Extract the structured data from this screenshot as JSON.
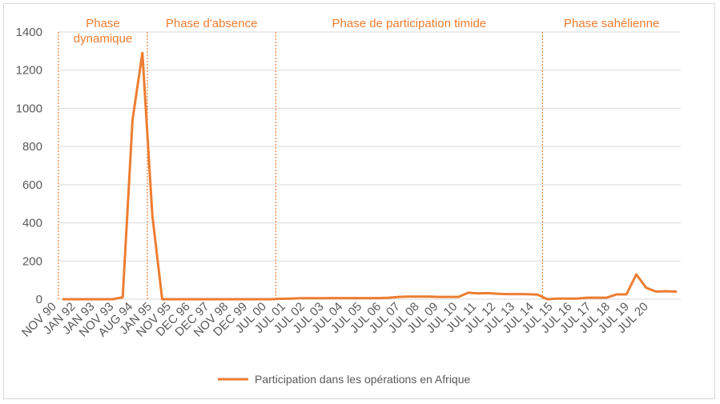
{
  "chart_data": {
    "type": "line",
    "title": "",
    "xlabel": "",
    "ylabel": "",
    "ylim": [
      0,
      1400
    ],
    "yticks": [
      0,
      200,
      400,
      600,
      800,
      1000,
      1200,
      1400
    ],
    "grid": true,
    "legend_position": "bottom",
    "colors": {
      "series": "#ED7D31",
      "grid": "#d9d9d9",
      "text": "#595959"
    },
    "x_tick_labels": [
      "NOV 90",
      "JAN 92",
      "JAN 93",
      "NOV 93",
      "AUG 94",
      "JAN 95",
      "NOV 95",
      "DEC 96",
      "DEC 97",
      "NOV 98",
      "DEC 99",
      "JUL 00",
      "JUL 01",
      "JUL 02",
      "JUL 03",
      "JUL 04",
      "JUL 05",
      "JUL 06",
      "JUL 07",
      "JUL 08",
      "JUL 09",
      "JUL 10",
      "JUL 11",
      "JUL 12",
      "JUL 13",
      "JUL 14",
      "JUL 15",
      "JUL 16",
      "JUL 17",
      "JUL 18",
      "JUL 19",
      "JUL 20"
    ],
    "phases": [
      {
        "label_lines": [
          "Phase",
          "dynamique"
        ],
        "start_index": 0
      },
      {
        "label_lines": [
          "Phase d'absence"
        ],
        "start_index": 9
      },
      {
        "label_lines": [
          "Phase de participation timide"
        ],
        "start_index": 22
      },
      {
        "label_lines": [
          "Phase sahélienne"
        ],
        "start_index": 49
      }
    ],
    "series": [
      {
        "name": "Participation dans les opérations en Afrique",
        "values": [
          0,
          0,
          0,
          0,
          0,
          0,
          10,
          940,
          1290,
          440,
          0,
          0,
          0,
          0,
          0,
          0,
          0,
          0,
          0,
          0,
          0,
          0,
          2,
          3,
          5,
          5,
          5,
          6,
          6,
          6,
          6,
          6,
          6,
          8,
          12,
          14,
          14,
          14,
          12,
          12,
          12,
          34,
          30,
          32,
          28,
          27,
          27,
          26,
          24,
          0,
          3,
          3,
          3,
          8,
          8,
          8,
          25,
          25,
          130,
          60,
          40,
          42,
          40
        ]
      }
    ]
  }
}
